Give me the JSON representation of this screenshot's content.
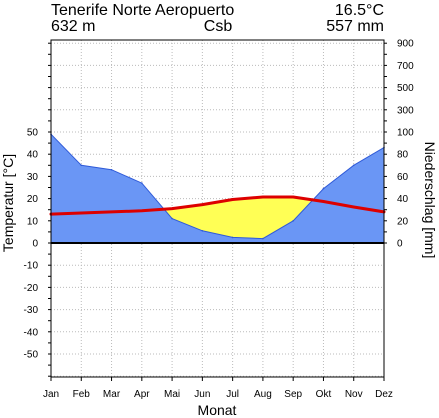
{
  "header": {
    "station": "Tenerife Norte Aeropuerto",
    "annual_temp": "16.5°C",
    "elevation": "632 m",
    "climate_class": "Csb",
    "annual_precip": "557 mm"
  },
  "chart_data": {
    "type": "line",
    "xlabel": "Monat",
    "ylabel_left": "Temperatur [°C]",
    "ylabel_right": "Niederschlag [mm]",
    "categories": [
      "Jan",
      "Feb",
      "Mar",
      "Apr",
      "Mai",
      "Jun",
      "Jul",
      "Aug",
      "Sep",
      "Okt",
      "Nov",
      "Dez"
    ],
    "series": [
      {
        "type": "line",
        "axis": "left",
        "color": "#dd0000",
        "values": [
          13,
          13.5,
          14,
          14.5,
          15.5,
          17.3,
          19.6,
          20.7,
          20.7,
          18.7,
          16.2,
          14
        ]
      },
      {
        "type": "area",
        "axis": "right",
        "color": "#3366ff",
        "values": [
          98,
          70,
          66,
          54,
          22,
          11,
          5,
          4,
          20,
          49,
          70,
          86
        ]
      }
    ],
    "temp_ticks": [
      -50,
      -40,
      -30,
      -20,
      -10,
      0,
      10,
      20,
      30,
      40,
      50
    ],
    "precip_ticks": [
      0,
      20,
      40,
      60,
      80,
      100,
      300,
      500,
      700,
      900
    ],
    "ylim_left": [
      -60,
      60
    ],
    "grid": true,
    "colors": {
      "humid_fill": "#6a96f5",
      "humid_line": "#2f5ad8",
      "arid_fill": "#ffff55",
      "temperature_line": "#dd0000"
    }
  }
}
